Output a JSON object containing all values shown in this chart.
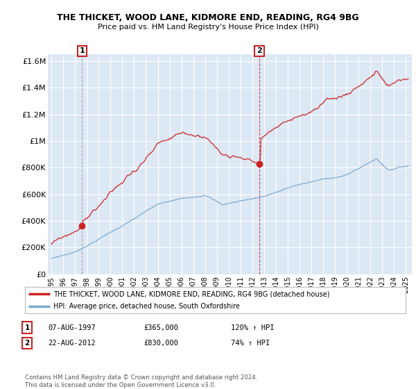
{
  "title": "THE THICKET, WOOD LANE, KIDMORE END, READING, RG4 9BG",
  "subtitle": "Price paid vs. HM Land Registry's House Price Index (HPI)",
  "ylim": [
    0,
    1650000
  ],
  "yticks": [
    0,
    200000,
    400000,
    600000,
    800000,
    1000000,
    1200000,
    1400000,
    1600000
  ],
  "ytick_labels": [
    "£0",
    "£200K",
    "£400K",
    "£600K",
    "£800K",
    "£1M",
    "£1.2M",
    "£1.4M",
    "£1.6M"
  ],
  "xlim_start": 1994.7,
  "xlim_end": 2025.5,
  "sale1_date": 1997.6,
  "sale1_price": 365000,
  "sale1_label": "1",
  "sale2_date": 2012.6,
  "sale2_price": 830000,
  "sale2_label": "2",
  "red_line_color": "#cc2222",
  "blue_line_color": "#7aaad0",
  "background_color": "#dde8f5",
  "grid_color": "#ffffff",
  "legend_line1": "THE THICKET, WOOD LANE, KIDMORE END, READING, RG4 9BG (detached house)",
  "legend_line2": "HPI: Average price, detached house, South Oxfordshire",
  "table_row1": [
    "1",
    "07-AUG-1997",
    "£365,000",
    "120% ↑ HPI"
  ],
  "table_row2": [
    "2",
    "22-AUG-2012",
    "£830,000",
    "74% ↑ HPI"
  ],
  "footer": "Contains HM Land Registry data © Crown copyright and database right 2024.\nThis data is licensed under the Open Government Licence v3.0."
}
